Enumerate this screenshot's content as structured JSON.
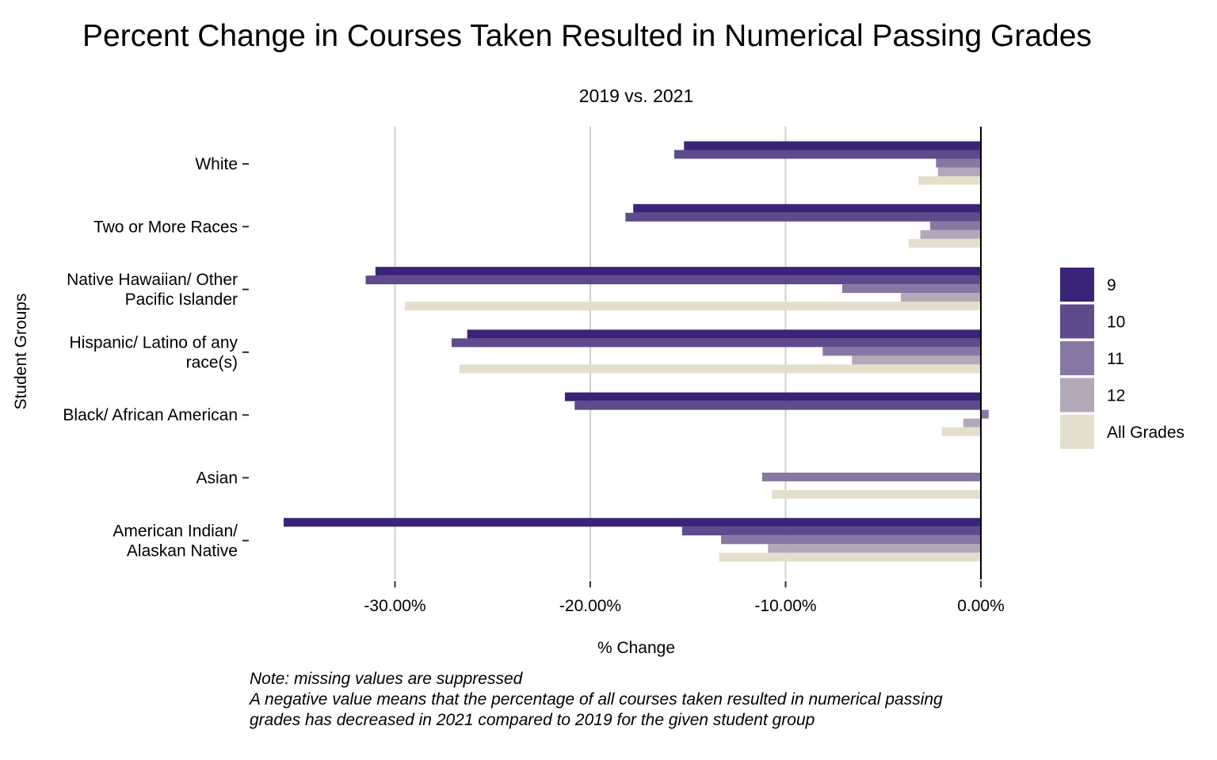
{
  "chart_data": {
    "type": "bar",
    "orientation": "horizontal",
    "title": "Percent Change in Courses Taken Resulted in Numerical Passing Grades",
    "subtitle": "2019 vs. 2021",
    "xlabel": "% Change",
    "ylabel": "Student Groups",
    "xlim": [
      -37.5,
      2
    ],
    "x_ticks": [
      -30,
      -20,
      -10,
      0
    ],
    "x_tick_labels": [
      "-30.00%",
      "-20.00%",
      "-10.00%",
      "0.00%"
    ],
    "grid": "vertical major",
    "legend_position": "right",
    "categories": [
      [
        "White"
      ],
      [
        "Two or More Races"
      ],
      [
        "Native Hawaiian/ Other",
        "Pacific Islander"
      ],
      [
        "Hispanic/ Latino of any",
        "race(s)"
      ],
      [
        "Black/ African American"
      ],
      [
        "Asian"
      ],
      [
        "American Indian/",
        "Alaskan Native"
      ]
    ],
    "series": [
      {
        "name": "9",
        "color": "#3b2477",
        "values": [
          -15.2,
          -17.8,
          -31.0,
          -26.3,
          -21.3,
          null,
          -35.7
        ]
      },
      {
        "name": "10",
        "color": "#5e4a8c",
        "values": [
          -15.7,
          -18.2,
          -31.5,
          -27.1,
          -20.8,
          null,
          -15.3
        ]
      },
      {
        "name": "11",
        "color": "#8877a2",
        "values": [
          -2.3,
          -2.6,
          -7.1,
          -8.1,
          0.4,
          -11.2,
          -13.3
        ]
      },
      {
        "name": "12",
        "color": "#b3a7ba",
        "values": [
          -2.2,
          -3.1,
          -4.1,
          -6.6,
          -0.9,
          null,
          -10.9
        ]
      },
      {
        "name": "All Grades",
        "color": "#e4dfcc",
        "values": [
          -3.2,
          -3.7,
          -29.5,
          -26.7,
          -2.0,
          -10.7,
          -13.4
        ]
      }
    ]
  },
  "notes": [
    "Note: missing values are suppressed",
    "A negative value means that the percentage of all courses taken resulted in numerical passing",
    "grades has decreased in 2021 compared to 2019 for the given student group"
  ]
}
